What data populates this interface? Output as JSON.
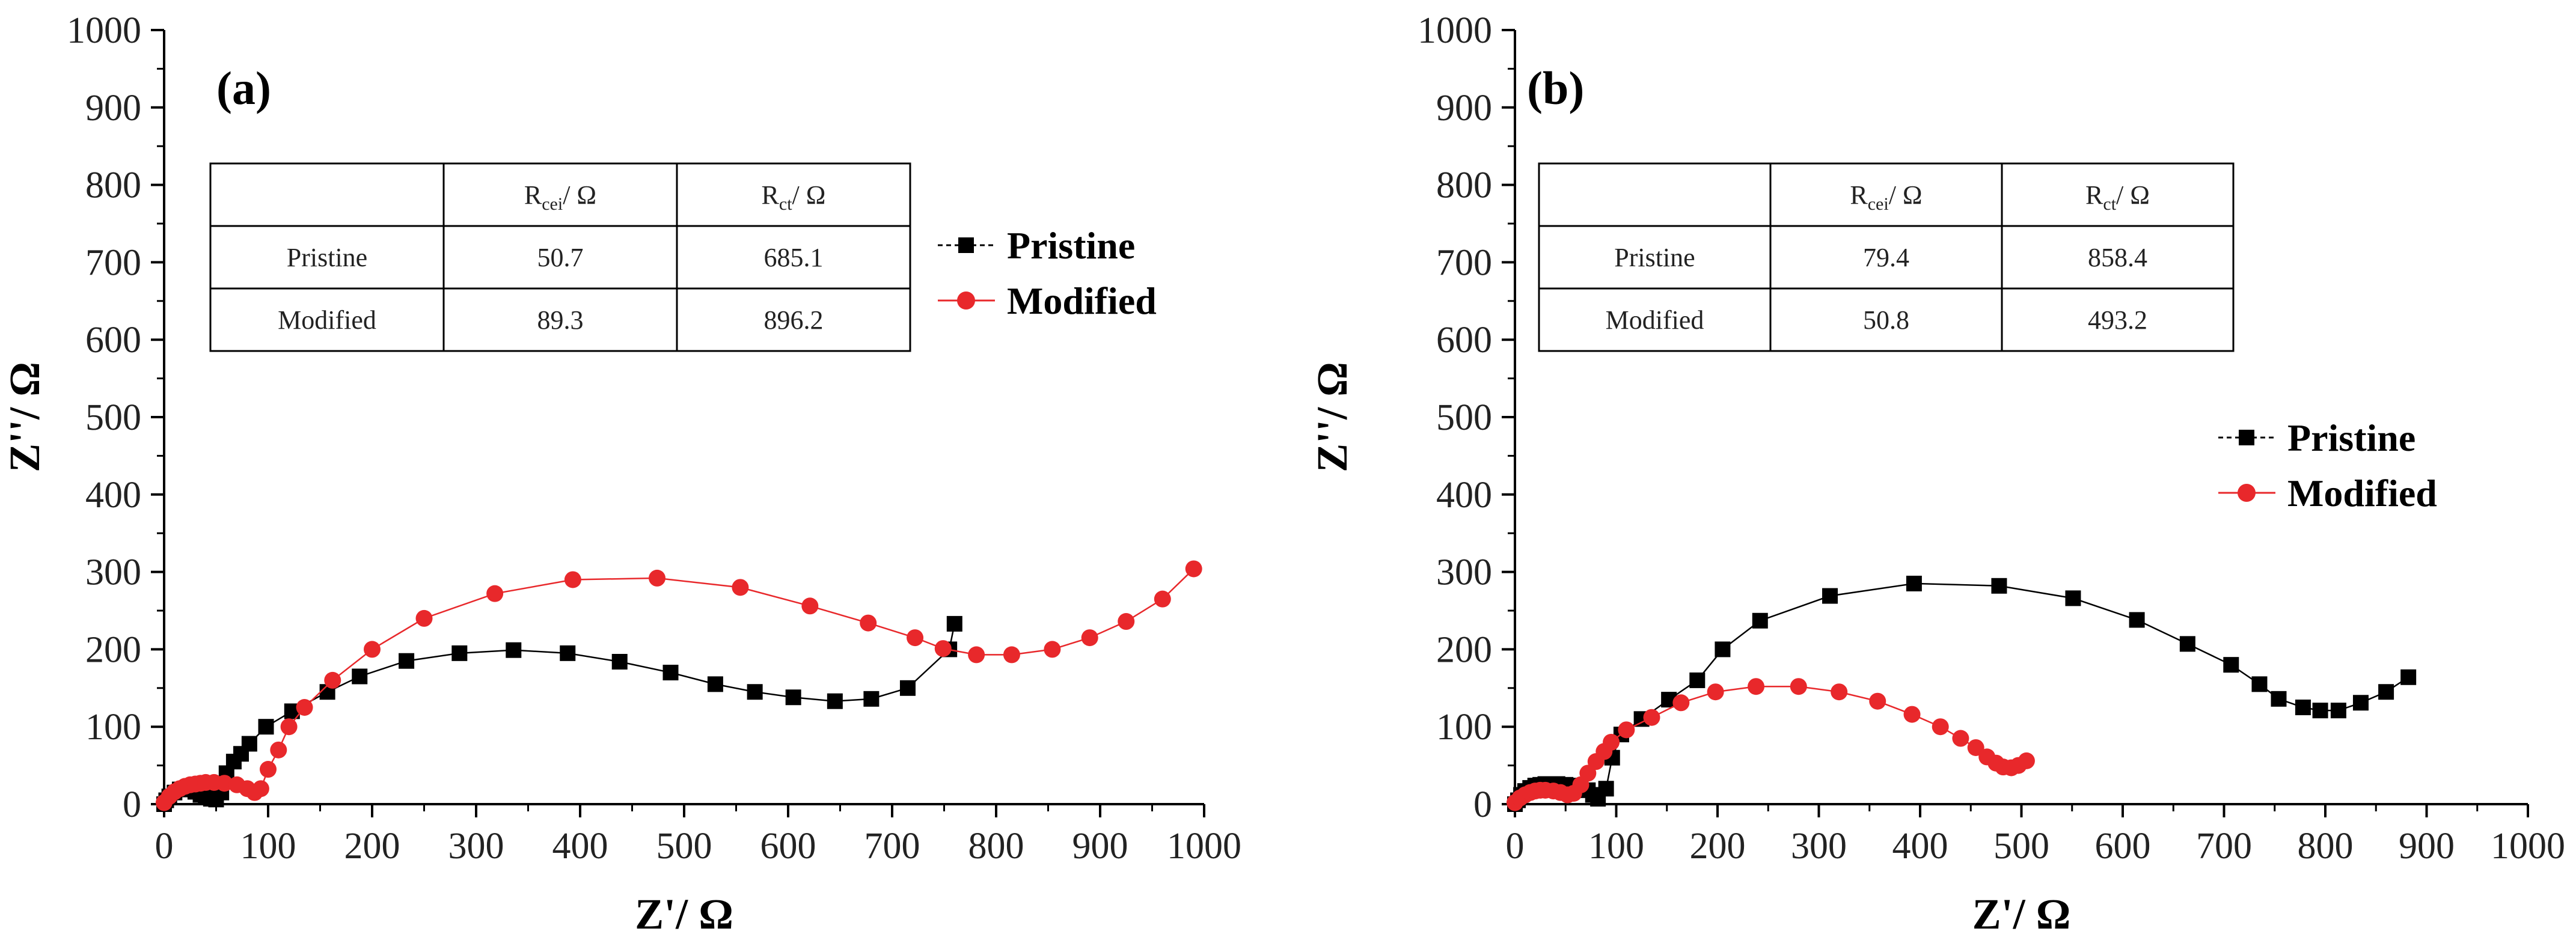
{
  "chart_data": [
    {
      "type": "scatter",
      "panel_label": "(a)",
      "xlabel": "Z'/ Ω",
      "ylabel": "Z''/ Ω",
      "xlim": [
        0,
        1000
      ],
      "ylim": [
        0,
        1000
      ],
      "x_ticks": [
        "0",
        "100",
        "200",
        "300",
        "400",
        "500",
        "600",
        "700",
        "800",
        "900",
        "1000"
      ],
      "y_ticks": [
        "0",
        "100",
        "200",
        "300",
        "400",
        "500",
        "600",
        "700",
        "800",
        "900",
        "1000"
      ],
      "legend": {
        "position": "right",
        "entries": [
          "Pristine",
          "Modified"
        ]
      },
      "table": {
        "headers": [
          "",
          "R",
          "R"
        ],
        "header_subs": [
          "",
          "cei",
          "ct"
        ],
        "header_units": [
          "",
          "/ Ω",
          "/ Ω"
        ],
        "rows": [
          [
            "Pristine",
            "50.7",
            "685.1"
          ],
          [
            "Modified",
            "89.3",
            "896.2"
          ]
        ]
      },
      "series": [
        {
          "name": "Pristine",
          "marker": "square",
          "color": "#000000",
          "points": [
            [
              0,
              0
            ],
            [
              2,
              5
            ],
            [
              5,
              10
            ],
            [
              10,
              15
            ],
            [
              15,
              19
            ],
            [
              20,
              20
            ],
            [
              25,
              19
            ],
            [
              30,
              16
            ],
            [
              35,
              12
            ],
            [
              40,
              9
            ],
            [
              45,
              7
            ],
            [
              50,
              6
            ],
            [
              55,
              15
            ],
            [
              60,
              40
            ],
            [
              67,
              55
            ],
            [
              74,
              65
            ],
            [
              82,
              78
            ],
            [
              98,
              100
            ],
            [
              123,
              120
            ],
            [
              157,
              145
            ],
            [
              188,
              165
            ],
            [
              233,
              185
            ],
            [
              284,
              195
            ],
            [
              336,
              199
            ],
            [
              388,
              195
            ],
            [
              438,
              184
            ],
            [
              487,
              170
            ],
            [
              530,
              155
            ],
            [
              568,
              145
            ],
            [
              605,
              138
            ],
            [
              645,
              133
            ],
            [
              680,
              136
            ],
            [
              715,
              150
            ],
            [
              755,
              200
            ],
            [
              760,
              233
            ]
          ]
        },
        {
          "name": "Modified",
          "marker": "circle",
          "color": "#e8282b",
          "points": [
            [
              0,
              2
            ],
            [
              5,
              10
            ],
            [
              10,
              16
            ],
            [
              15,
              20
            ],
            [
              20,
              23
            ],
            [
              25,
              25
            ],
            [
              30,
              26
            ],
            [
              35,
              27
            ],
            [
              40,
              28
            ],
            [
              48,
              28
            ],
            [
              58,
              27
            ],
            [
              70,
              25
            ],
            [
              80,
              20
            ],
            [
              87,
              15
            ],
            [
              93,
              20
            ],
            [
              100,
              45
            ],
            [
              110,
              70
            ],
            [
              120,
              100
            ],
            [
              135,
              125
            ],
            [
              162,
              160
            ],
            [
              200,
              200
            ],
            [
              250,
              240
            ],
            [
              318,
              272
            ],
            [
              393,
              290
            ],
            [
              474,
              292
            ],
            [
              554,
              280
            ],
            [
              621,
              256
            ],
            [
              677,
              234
            ],
            [
              722,
              215
            ],
            [
              749,
              201
            ],
            [
              781,
              193
            ],
            [
              815,
              193
            ],
            [
              854,
              200
            ],
            [
              890,
              215
            ],
            [
              925,
              236
            ],
            [
              960,
              265
            ],
            [
              990,
              304
            ]
          ]
        }
      ]
    },
    {
      "type": "scatter",
      "panel_label": "(b)",
      "xlabel": "Z'/ Ω",
      "ylabel": "Z''/ Ω",
      "xlim": [
        0,
        1000
      ],
      "ylim": [
        0,
        1000
      ],
      "x_ticks": [
        "0",
        "100",
        "200",
        "300",
        "400",
        "500",
        "600",
        "700",
        "800",
        "900",
        "1000"
      ],
      "y_ticks": [
        "0",
        "100",
        "200",
        "300",
        "400",
        "500",
        "600",
        "700",
        "800",
        "900",
        "1000"
      ],
      "legend": {
        "position": "right",
        "entries": [
          "Pristine",
          "Modified"
        ]
      },
      "table": {
        "headers": [
          "",
          "R",
          "R"
        ],
        "header_subs": [
          "",
          "cei",
          "ct"
        ],
        "header_units": [
          "",
          "/ Ω",
          "/ Ω"
        ],
        "rows": [
          [
            "Pristine",
            "79.4",
            "858.4"
          ],
          [
            "Modified",
            "50.8",
            "493.2"
          ]
        ]
      },
      "series": [
        {
          "name": "Pristine",
          "marker": "square",
          "color": "#000000",
          "points": [
            [
              0,
              0
            ],
            [
              3,
              5
            ],
            [
              6,
              12
            ],
            [
              10,
              17
            ],
            [
              15,
              21
            ],
            [
              20,
              24
            ],
            [
              25,
              25
            ],
            [
              30,
              26
            ],
            [
              35,
              26
            ],
            [
              42,
              26
            ],
            [
              50,
              25
            ],
            [
              58,
              24
            ],
            [
              65,
              22
            ],
            [
              72,
              18
            ],
            [
              77,
              12
            ],
            [
              82,
              7
            ],
            [
              90,
              20
            ],
            [
              96,
              60
            ],
            [
              105,
              90
            ],
            [
              125,
              110
            ],
            [
              152,
              135
            ],
            [
              180,
              160
            ],
            [
              205,
              200
            ],
            [
              242,
              237
            ],
            [
              311,
              269
            ],
            [
              394,
              285
            ],
            [
              478,
              282
            ],
            [
              551,
              266
            ],
            [
              614,
              238
            ],
            [
              664,
              207
            ],
            [
              707,
              180
            ],
            [
              735,
              155
            ],
            [
              754,
              136
            ],
            [
              778,
              125
            ],
            [
              795,
              121
            ],
            [
              813,
              121
            ],
            [
              835,
              131
            ],
            [
              860,
              145
            ],
            [
              882,
              164
            ]
          ]
        },
        {
          "name": "Modified",
          "marker": "circle",
          "color": "#e8282b",
          "points": [
            [
              0,
              2
            ],
            [
              5,
              8
            ],
            [
              10,
              12
            ],
            [
              15,
              15
            ],
            [
              20,
              17
            ],
            [
              25,
              18
            ],
            [
              30,
              18
            ],
            [
              38,
              17
            ],
            [
              45,
              15
            ],
            [
              52,
              12
            ],
            [
              58,
              14
            ],
            [
              65,
              25
            ],
            [
              72,
              40
            ],
            [
              80,
              55
            ],
            [
              88,
              68
            ],
            [
              95,
              80
            ],
            [
              110,
              96
            ],
            [
              135,
              112
            ],
            [
              164,
              131
            ],
            [
              198,
              145
            ],
            [
              238,
              152
            ],
            [
              280,
              152
            ],
            [
              320,
              145
            ],
            [
              358,
              133
            ],
            [
              392,
              116
            ],
            [
              420,
              100
            ],
            [
              440,
              85
            ],
            [
              455,
              73
            ],
            [
              466,
              61
            ],
            [
              475,
              53
            ],
            [
              482,
              48
            ],
            [
              490,
              47
            ],
            [
              497,
              50
            ],
            [
              505,
              56
            ]
          ]
        }
      ]
    }
  ]
}
